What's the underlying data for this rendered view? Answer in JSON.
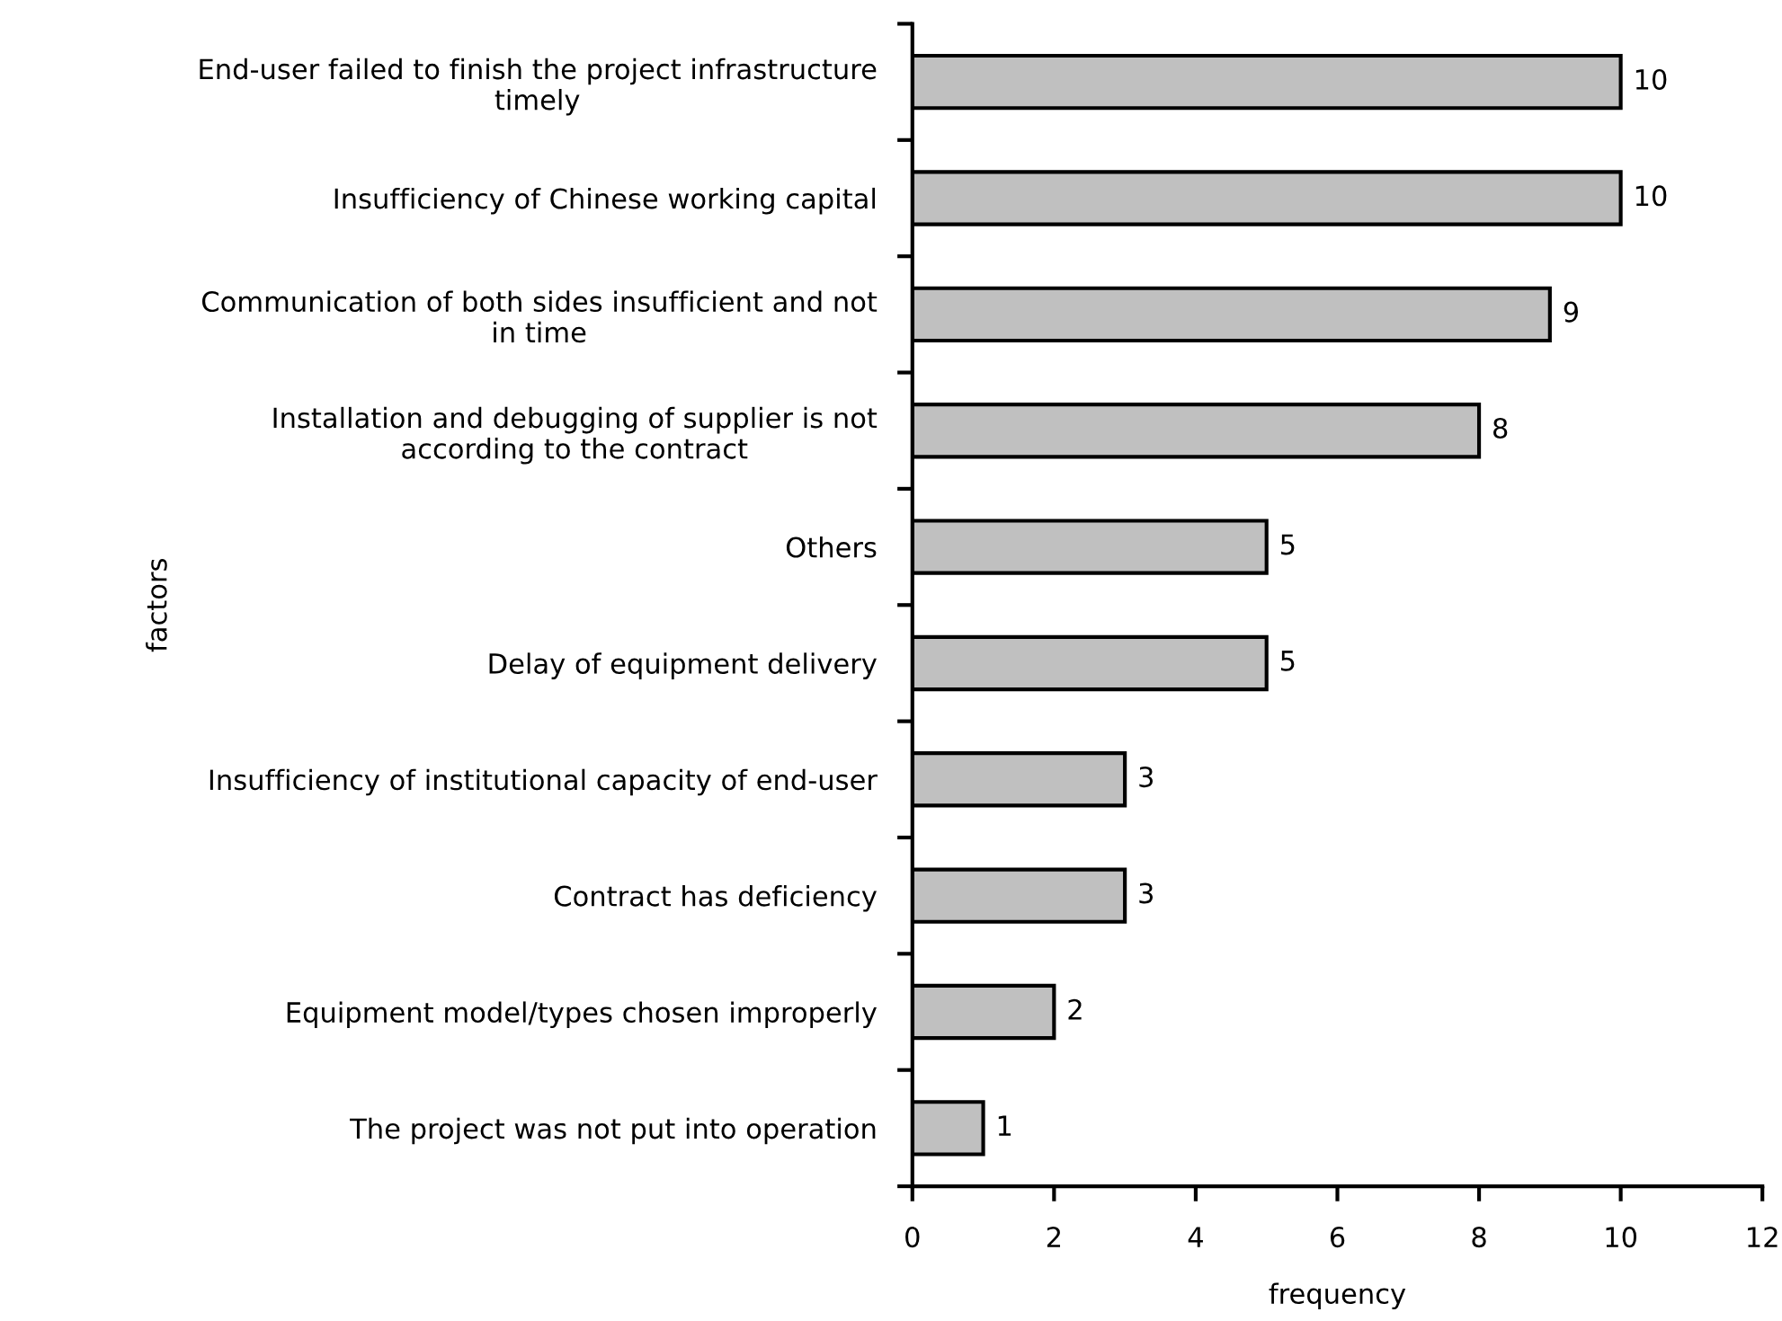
{
  "chart_data": {
    "type": "bar",
    "orientation": "horizontal",
    "xlabel": "frequency",
    "ylabel": "factors",
    "categories": [
      "End-user failed to finish the project infrastructure\ntimely",
      "Insufficiency of Chinese working capital",
      "Communication of both sides insufficient and not\nin time",
      "Installation and debugging of supplier is not\naccording to the contract",
      "Others",
      "Delay of equipment delivery",
      "Insufficiency of institutional capacity of end-user",
      "Contract has deficiency",
      "Equipment model/types chosen improperly",
      "The project was not put into operation"
    ],
    "values": [
      10,
      10,
      9,
      8,
      5,
      5,
      3,
      3,
      2,
      1
    ],
    "color": "#c0c0c0",
    "xlim": [
      0,
      12
    ],
    "xticks": [
      0,
      2,
      4,
      6,
      8,
      10,
      12
    ],
    "data_labels": true,
    "grid": false,
    "legend": false
  }
}
